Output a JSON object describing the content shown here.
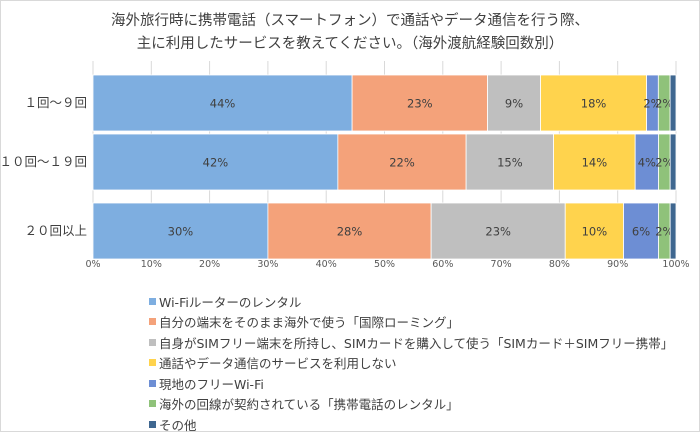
{
  "chart_data": {
    "type": "bar",
    "orientation": "horizontal",
    "stacked": true,
    "percent_scale": true,
    "title": [
      "海外旅行時に携帯電話（スマートフォン）で通話やデータ通信を行う際、",
      "主に利用したサービスを教えてください。（海外渡航経験回数別）"
    ],
    "categories": [
      "１回～９回",
      "１０回～１９回",
      "２０回以上"
    ],
    "x_ticks": [
      "0%",
      "10%",
      "20%",
      "30%",
      "40%",
      "50%",
      "60%",
      "70%",
      "80%",
      "90%",
      "100%"
    ],
    "xlim": [
      0,
      100
    ],
    "grid": true,
    "legend_position": "bottom",
    "series": [
      {
        "name": "Wi-Fiルーターのレンタル",
        "color": "#7eaee0",
        "values": [
          44,
          42,
          30
        ],
        "labels": [
          "44%",
          "42%",
          "30%"
        ]
      },
      {
        "name": "自分の端末をそのまま海外で使う「国際ローミング」",
        "color": "#f4a27a",
        "values": [
          23,
          22,
          28
        ],
        "labels": [
          "23%",
          "22%",
          "28%"
        ]
      },
      {
        "name": "自身がSIMフリー端末を所持し、SIMカードを購入して使う「SIMカード＋SIMフリー携帯」",
        "color": "#bfbfbf",
        "values": [
          9,
          15,
          23
        ],
        "labels": [
          "9%",
          "15%",
          "23%"
        ]
      },
      {
        "name": "通話やデータ通信のサービスを利用しない",
        "color": "#ffd34d",
        "values": [
          18,
          14,
          10
        ],
        "labels": [
          "18%",
          "14%",
          "10%"
        ]
      },
      {
        "name": "現地のフリーWi-Fi",
        "color": "#6d8ed4",
        "values": [
          2,
          4,
          6
        ],
        "labels": [
          "2%",
          "4%",
          "6%"
        ]
      },
      {
        "name": "海外の回線が契約されている「携帯電話のレンタル」",
        "color": "#8fc27a",
        "values": [
          2,
          2,
          2
        ],
        "labels": [
          "2%",
          "2%",
          "2%"
        ]
      },
      {
        "name": "その他",
        "color": "#3f6790",
        "values": [
          1,
          1,
          1
        ],
        "labels": [
          "",
          "",
          ""
        ]
      }
    ]
  }
}
